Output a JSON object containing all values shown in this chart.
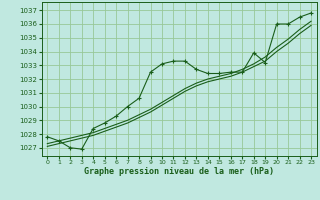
{
  "title": "Graphe pression niveau de la mer (hPa)",
  "bg_color": "#c0e8e0",
  "grid_color": "#98c898",
  "line_color": "#1a5e1a",
  "xlim": [
    -0.5,
    23.5
  ],
  "ylim": [
    1026.4,
    1037.6
  ],
  "yticks": [
    1027,
    1028,
    1029,
    1030,
    1031,
    1032,
    1033,
    1034,
    1035,
    1036,
    1037
  ],
  "xticks": [
    0,
    1,
    2,
    3,
    4,
    5,
    6,
    7,
    8,
    9,
    10,
    11,
    12,
    13,
    14,
    15,
    16,
    17,
    18,
    19,
    20,
    21,
    22,
    23
  ],
  "series1_x": [
    0,
    1,
    2,
    3,
    4,
    5,
    6,
    7,
    8,
    9,
    10,
    11,
    12,
    13,
    14,
    15,
    16,
    17,
    18,
    19,
    20,
    21,
    22,
    23
  ],
  "series1_y": [
    1027.8,
    1027.5,
    1027.0,
    1026.9,
    1028.4,
    1028.8,
    1029.3,
    1030.0,
    1030.6,
    1032.5,
    1033.1,
    1033.3,
    1033.3,
    1032.7,
    1032.4,
    1032.4,
    1032.5,
    1032.5,
    1033.9,
    1033.2,
    1036.0,
    1036.0,
    1036.5,
    1036.8
  ],
  "series2_x": [
    0,
    1,
    2,
    3,
    4,
    5,
    6,
    7,
    8,
    9,
    10,
    11,
    12,
    13,
    14,
    15,
    16,
    17,
    18,
    19,
    20,
    21,
    22,
    23
  ],
  "series2_y": [
    1027.3,
    1027.5,
    1027.7,
    1027.9,
    1028.1,
    1028.4,
    1028.7,
    1029.0,
    1029.4,
    1029.8,
    1030.3,
    1030.8,
    1031.3,
    1031.7,
    1032.0,
    1032.2,
    1032.4,
    1032.7,
    1033.1,
    1033.6,
    1034.3,
    1034.9,
    1035.6,
    1036.2
  ],
  "series3_x": [
    0,
    1,
    2,
    3,
    4,
    5,
    6,
    7,
    8,
    9,
    10,
    11,
    12,
    13,
    14,
    15,
    16,
    17,
    18,
    19,
    20,
    21,
    22,
    23
  ],
  "series3_y": [
    1027.1,
    1027.3,
    1027.5,
    1027.7,
    1027.9,
    1028.2,
    1028.5,
    1028.8,
    1029.2,
    1029.6,
    1030.1,
    1030.6,
    1031.1,
    1031.5,
    1031.8,
    1032.0,
    1032.2,
    1032.5,
    1032.9,
    1033.3,
    1034.0,
    1034.6,
    1035.3,
    1035.9
  ]
}
